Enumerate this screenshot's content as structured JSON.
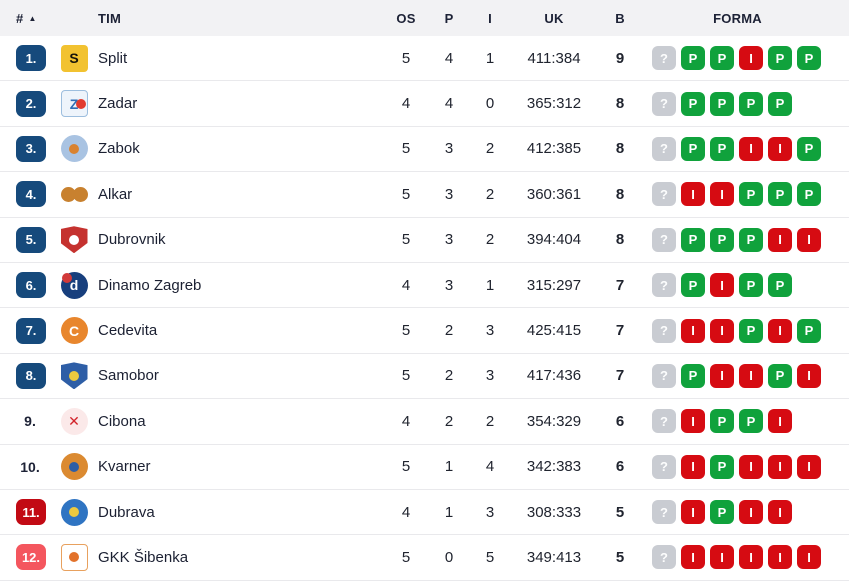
{
  "header": {
    "rank": "#",
    "sort_arrow": "▲",
    "team": "TIM",
    "os": "OS",
    "p": "P",
    "i": "I",
    "uk": "UK",
    "b": "B",
    "forma": "FORMA"
  },
  "colors": {
    "form_win": "#10a23c",
    "form_loss": "#d60b12",
    "form_unknown": "#c9ccd2",
    "rank_primary": "#164a7c",
    "rank_danger": "#c20a14",
    "rank_danger_light": "#f4565e",
    "header_bg": "#f2f2f4",
    "divider": "#e9e9ec"
  },
  "teams": [
    {
      "rank": "1.",
      "rank_style": "primary",
      "name": "Split",
      "os": "5",
      "p": "4",
      "i": "1",
      "uk": "411:384",
      "b": "9",
      "forma": [
        "?",
        "P",
        "P",
        "I",
        "P",
        "P"
      ],
      "logo": {
        "shape": "square",
        "bg": "#f2c230",
        "glyph": "S",
        "fg": "#15130a"
      }
    },
    {
      "rank": "2.",
      "rank_style": "primary",
      "name": "Zadar",
      "os": "4",
      "p": "4",
      "i": "0",
      "uk": "365:312",
      "b": "8",
      "forma": [
        "?",
        "P",
        "P",
        "P",
        "P"
      ],
      "logo": {
        "shape": "square",
        "bg": "#eef4fb",
        "border": "#9dbede",
        "glyph": "Z",
        "fg": "#2f6db5",
        "accent": "#e23b30",
        "accent_pos": "mr"
      }
    },
    {
      "rank": "3.",
      "rank_style": "primary",
      "name": "Zabok",
      "os": "5",
      "p": "3",
      "i": "2",
      "uk": "412:385",
      "b": "8",
      "forma": [
        "?",
        "P",
        "P",
        "I",
        "I",
        "P"
      ],
      "logo": {
        "shape": "circle",
        "bg": "#a9c3e2",
        "glyph": "",
        "accent": "#d9822f",
        "accent_pos": "center"
      }
    },
    {
      "rank": "4.",
      "rank_style": "primary",
      "name": "Alkar",
      "os": "5",
      "p": "3",
      "i": "2",
      "uk": "360:361",
      "b": "8",
      "forma": [
        "?",
        "I",
        "I",
        "P",
        "P",
        "P"
      ],
      "logo": {
        "shape": "balls",
        "bg": "#c8812f"
      }
    },
    {
      "rank": "5.",
      "rank_style": "primary",
      "name": "Dubrovnik",
      "os": "5",
      "p": "3",
      "i": "2",
      "uk": "394:404",
      "b": "8",
      "forma": [
        "?",
        "P",
        "P",
        "P",
        "I",
        "I"
      ],
      "logo": {
        "shape": "shield",
        "bg": "#c5322f",
        "accent": "#ffffff",
        "accent_pos": "center"
      }
    },
    {
      "rank": "6.",
      "rank_style": "primary",
      "name": "Dinamo Zagreb",
      "os": "4",
      "p": "3",
      "i": "1",
      "uk": "315:297",
      "b": "7",
      "forma": [
        "?",
        "P",
        "I",
        "P",
        "P"
      ],
      "logo": {
        "shape": "circle",
        "bg": "#173f7d",
        "glyph": "d",
        "fg": "#ffffff",
        "accent": "#d23a3a",
        "accent_pos": "tl"
      }
    },
    {
      "rank": "7.",
      "rank_style": "primary",
      "name": "Cedevita",
      "os": "5",
      "p": "2",
      "i": "3",
      "uk": "425:415",
      "b": "7",
      "forma": [
        "?",
        "I",
        "I",
        "P",
        "I",
        "P"
      ],
      "logo": {
        "shape": "circle",
        "bg": "#e8862d",
        "glyph": "C",
        "fg": "#ffffff"
      }
    },
    {
      "rank": "8.",
      "rank_style": "primary",
      "name": "Samobor",
      "os": "5",
      "p": "2",
      "i": "3",
      "uk": "417:436",
      "b": "7",
      "forma": [
        "?",
        "P",
        "I",
        "I",
        "P",
        "I"
      ],
      "logo": {
        "shape": "shield",
        "bg": "#2e5ea6",
        "accent": "#ecc93f",
        "accent_pos": "center"
      }
    },
    {
      "rank": "9.",
      "rank_style": "plain",
      "name": "Cibona",
      "os": "4",
      "p": "2",
      "i": "2",
      "uk": "354:329",
      "b": "6",
      "forma": [
        "?",
        "I",
        "P",
        "P",
        "I"
      ],
      "logo": {
        "shape": "circle",
        "bg": "#fbe9e9",
        "glyph": "✕",
        "fg": "#d2242b"
      }
    },
    {
      "rank": "10.",
      "rank_style": "plain",
      "name": "Kvarner",
      "os": "5",
      "p": "1",
      "i": "4",
      "uk": "342:383",
      "b": "6",
      "forma": [
        "?",
        "I",
        "P",
        "I",
        "I",
        "I"
      ],
      "logo": {
        "shape": "circle",
        "bg": "#db8a31",
        "accent": "#2e5ea6",
        "accent_pos": "center"
      }
    },
    {
      "rank": "11.",
      "rank_style": "danger",
      "name": "Dubrava",
      "os": "4",
      "p": "1",
      "i": "3",
      "uk": "308:333",
      "b": "5",
      "forma": [
        "?",
        "I",
        "P",
        "I",
        "I"
      ],
      "logo": {
        "shape": "circle",
        "bg": "#2f74c2",
        "accent": "#ecc93f",
        "accent_pos": "center"
      }
    },
    {
      "rank": "12.",
      "rank_style": "danger-light",
      "name": "GKK Šibenka",
      "os": "5",
      "p": "0",
      "i": "5",
      "uk": "349:413",
      "b": "5",
      "forma": [
        "?",
        "I",
        "I",
        "I",
        "I",
        "I"
      ],
      "logo": {
        "shape": "square",
        "bg": "#ffffff",
        "border": "#e8a15e",
        "accent": "#e2722b",
        "accent_pos": "center"
      }
    }
  ]
}
